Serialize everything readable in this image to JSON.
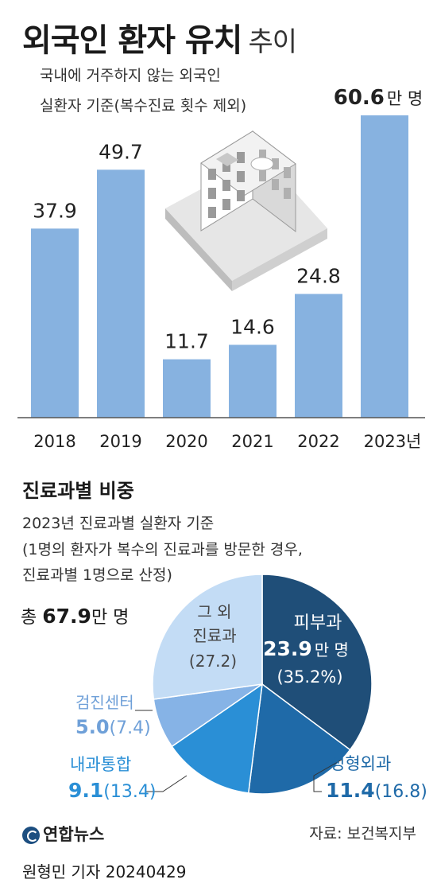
{
  "title": "외국인 환자 유치",
  "title_suffix": "추이",
  "note_line1": "국내에 거주하지 않는 외국인",
  "note_line2": "실환자 기준(복수진료 횟수 제외)",
  "unit_label": "만 명",
  "chart_data": [
    {
      "type": "bar",
      "categories": [
        "2018",
        "2019",
        "2020",
        "2021",
        "2022",
        "2023년"
      ],
      "values": [
        37.9,
        49.7,
        11.7,
        14.6,
        24.8,
        60.6
      ],
      "value_labels": [
        "37.9",
        "49.7",
        "11.7",
        "14.6",
        "24.8",
        "60.6"
      ],
      "ylim": [
        0,
        60.6
      ],
      "grid": false,
      "colors": {
        "bar": "#87b2e0",
        "baseline": "#555555"
      }
    },
    {
      "type": "pie",
      "title": "진료과별 비중",
      "subtitle_lines": [
        "2023년 진료과별 실환자 기준",
        "(1명의 환자가 복수의 진료과를 방문한 경우,",
        "진료과별 1명으로 산정)"
      ],
      "total_prefix": "총",
      "total_value": "67.9",
      "total_unit": "만 명",
      "slices": [
        {
          "name": "피부과",
          "value": 23.9,
          "value_label": "23.9",
          "unit": "만 명",
          "percent": 35.2,
          "percent_label": "(35.2%)",
          "color": "#1f4e78"
        },
        {
          "name": "성형외과",
          "value": 11.4,
          "value_label": "11.4",
          "percent": 16.8,
          "percent_label": "(16.8)",
          "color": "#1f6aa8"
        },
        {
          "name": "내과통합",
          "value": 9.1,
          "value_label": "9.1",
          "percent": 13.4,
          "percent_label": "(13.4)",
          "color": "#2a8fd6"
        },
        {
          "name": "검진센터",
          "value": 5.0,
          "value_label": "5.0",
          "percent": 7.4,
          "percent_label": "(7.4)",
          "color": "#86b3e6"
        },
        {
          "name_lines": [
            "그 외",
            "진료과"
          ],
          "value": 18.5,
          "percent": 27.2,
          "percent_label": "(27.2)",
          "color": "#c3dcf5"
        }
      ]
    }
  ],
  "source": "자료: 보건복지부",
  "logo": "연합뉴스",
  "byline": "원형민 기자 20240429"
}
